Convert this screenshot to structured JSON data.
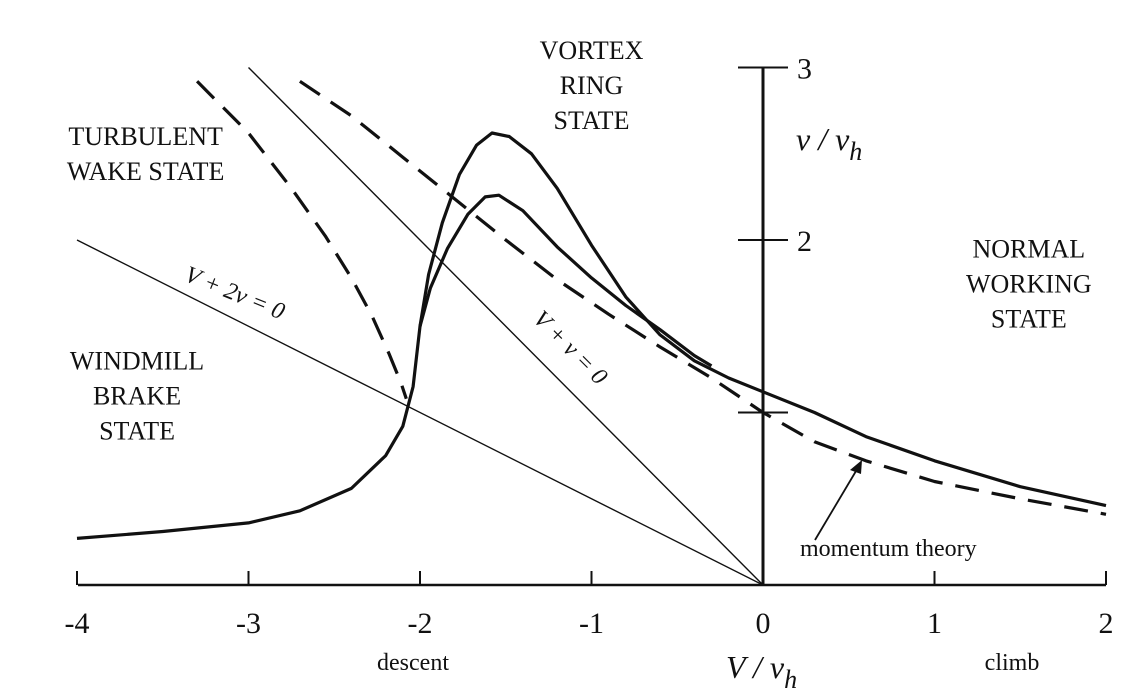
{
  "chart_data": {
    "type": "line",
    "title": "",
    "xlabel": "V / v_h",
    "xlabel_parts": {
      "main": "V / v",
      "sub": "h"
    },
    "ylabel": "v / v_h",
    "ylabel_parts": {
      "main": "v / v",
      "sub": "h"
    },
    "xlim": [
      -4,
      2
    ],
    "ylim": [
      0,
      3
    ],
    "x_ticks": [
      "-4",
      "-3",
      "-2",
      "-1",
      "0",
      "1",
      "2"
    ],
    "y_ticks": [
      "2",
      "3"
    ],
    "x_direction_labels": {
      "left": "descent",
      "right": "climb"
    },
    "regions": [
      {
        "lines": [
          "TURBULENT",
          "WAKE STATE"
        ],
        "x": -3.6,
        "y": 2.55
      },
      {
        "lines": [
          "VORTEX",
          "RING",
          "STATE"
        ],
        "x": -1.0,
        "y": 3.05
      },
      {
        "lines": [
          "NORMAL",
          "WORKING",
          "STATE"
        ],
        "x": 1.55,
        "y": 1.9
      },
      {
        "lines": [
          "WINDMILL",
          "BRAKE",
          "STATE"
        ],
        "x": -3.65,
        "y": 1.25
      }
    ],
    "reference_lines": [
      {
        "label": "V + 2ν = 0",
        "slope": -0.5,
        "x_from": -4,
        "x_to": 0
      },
      {
        "label": "V + ν = 0",
        "slope": -1,
        "x_from": -3.0,
        "x_to": 0
      }
    ],
    "annotation": {
      "text": "momentum theory"
    },
    "series": [
      {
        "style": "dashed",
        "points": [
          [
            -3.3,
            2.92
          ],
          [
            -3.0,
            2.62
          ],
          [
            -2.75,
            2.3
          ],
          [
            -2.55,
            2.02
          ],
          [
            -2.4,
            1.78
          ],
          [
            -2.28,
            1.56
          ],
          [
            -2.18,
            1.34
          ],
          [
            -2.11,
            1.17
          ],
          [
            -2.08,
            1.08
          ]
        ]
      },
      {
        "style": "dashed",
        "points": [
          [
            -2.7,
            2.92
          ],
          [
            -2.4,
            2.72
          ],
          [
            -2.1,
            2.48
          ],
          [
            -1.8,
            2.24
          ],
          [
            -1.5,
            2.0
          ],
          [
            -1.2,
            1.77
          ],
          [
            -0.9,
            1.57
          ],
          [
            -0.6,
            1.38
          ],
          [
            -0.3,
            1.2
          ],
          [
            0,
            1.0
          ],
          [
            0.3,
            0.83
          ],
          [
            0.6,
            0.72
          ],
          [
            1.0,
            0.6
          ],
          [
            1.5,
            0.5
          ],
          [
            2.0,
            0.41
          ]
        ]
      },
      {
        "style": "solid",
        "points": [
          [
            -4.0,
            0.27
          ],
          [
            -3.5,
            0.31
          ],
          [
            -3.0,
            0.36
          ],
          [
            -2.7,
            0.43
          ],
          [
            -2.4,
            0.56
          ],
          [
            -2.2,
            0.75
          ],
          [
            -2.1,
            0.92
          ],
          [
            -2.04,
            1.15
          ],
          [
            -2.0,
            1.5
          ],
          [
            -1.95,
            1.8
          ],
          [
            -1.87,
            2.1
          ],
          [
            -1.77,
            2.38
          ],
          [
            -1.67,
            2.55
          ],
          [
            -1.58,
            2.62
          ],
          [
            -1.48,
            2.6
          ],
          [
            -1.35,
            2.5
          ],
          [
            -1.2,
            2.3
          ],
          [
            -1.0,
            1.97
          ],
          [
            -0.8,
            1.67
          ],
          [
            -0.6,
            1.45
          ],
          [
            -0.4,
            1.3
          ],
          [
            -0.2,
            1.2
          ],
          [
            0,
            1.12
          ],
          [
            0.3,
            1.0
          ],
          [
            0.6,
            0.86
          ],
          [
            1.0,
            0.72
          ],
          [
            1.5,
            0.57
          ],
          [
            2.0,
            0.46
          ]
        ]
      },
      {
        "style": "solid",
        "points": [
          [
            -2.0,
            1.5
          ],
          [
            -1.94,
            1.72
          ],
          [
            -1.84,
            1.95
          ],
          [
            -1.72,
            2.15
          ],
          [
            -1.62,
            2.25
          ],
          [
            -1.54,
            2.26
          ],
          [
            -1.4,
            2.17
          ],
          [
            -1.2,
            1.96
          ],
          [
            -1.0,
            1.78
          ],
          [
            -0.8,
            1.62
          ],
          [
            -0.6,
            1.48
          ],
          [
            -0.4,
            1.33
          ],
          [
            -0.3,
            1.27
          ]
        ]
      }
    ]
  }
}
